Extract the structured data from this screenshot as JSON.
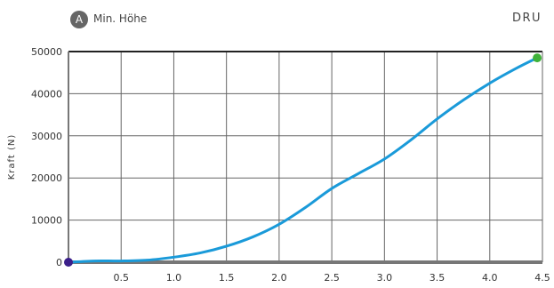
{
  "header": {
    "badge": "A",
    "label": "Min. Höhe",
    "corner": "DRU"
  },
  "colors": {
    "line": "#1a9ad9",
    "start_marker": "#3b1f8a",
    "end_marker": "#3fb23a",
    "grid": "#666666",
    "axis": "#777777"
  },
  "chart_data": {
    "type": "line",
    "title": "",
    "xlabel": "",
    "ylabel": "Kraft (N)",
    "xlim": [
      0,
      4.5
    ],
    "ylim": [
      0,
      50000
    ],
    "xticks": [
      "0.5",
      "1.0",
      "1.5",
      "2.0",
      "2.5",
      "3.0",
      "3.5",
      "4.0",
      "4.5"
    ],
    "yticks": [
      "0",
      "10000",
      "20000",
      "30000",
      "40000",
      "50000"
    ],
    "grid": true,
    "series": [
      {
        "x": [
          0,
          0.25,
          0.5,
          0.75,
          1.0,
          1.25,
          1.5,
          1.75,
          2.0,
          2.25,
          2.5,
          2.75,
          3.0,
          3.25,
          3.5,
          3.75,
          4.0,
          4.25,
          4.45
        ],
        "y": [
          0,
          300,
          300,
          500,
          1200,
          2200,
          3800,
          6000,
          9000,
          13000,
          17500,
          21000,
          24500,
          29000,
          34000,
          38500,
          42500,
          46000,
          48500
        ]
      }
    ],
    "markers": [
      {
        "x": 0,
        "y": 0,
        "role": "start"
      },
      {
        "x": 4.45,
        "y": 48500,
        "role": "end"
      }
    ]
  }
}
